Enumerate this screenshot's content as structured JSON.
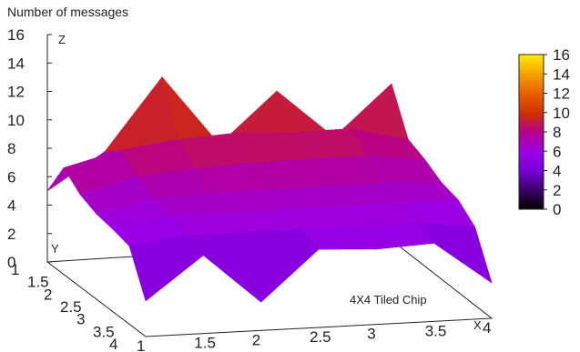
{
  "chart_data": {
    "type": "surface",
    "title": "Number of messages",
    "zlabel": "Z",
    "xlabel": "X",
    "ylabel": "Y",
    "annotation": "4X4 Tiled Chip",
    "zlim": [
      0,
      16
    ],
    "z_ticks": [
      "16",
      "14",
      "12",
      "10",
      "8",
      "6",
      "4",
      "2",
      "0"
    ],
    "x_ticks": [
      "1",
      "1.5",
      "2",
      "2.5",
      "3",
      "3.5",
      "4"
    ],
    "y_ticks": [
      "1",
      "1.5",
      "2",
      "2.5",
      "3",
      "3.5",
      "4"
    ],
    "colorbar": {
      "range": [
        0,
        16
      ],
      "ticks": [
        "16",
        "14",
        "12",
        "10",
        "8",
        "6",
        "4",
        "2",
        "0"
      ],
      "palette": [
        "#000000",
        "#3a0066",
        "#7a00d6",
        "#9a00e8",
        "#b8008c",
        "#d03000",
        "#e86000",
        "#f4a000",
        "#ffee00"
      ]
    },
    "grid": false,
    "x": [
      1,
      1.5,
      2,
      2.5,
      3,
      3.5,
      4
    ],
    "y": [
      1,
      1.5,
      2,
      2.5,
      3,
      3.5,
      4
    ],
    "z": [
      [
        2.5,
        5.5,
        2.0,
        5.5,
        5.3,
        5.5,
        2.5
      ],
      [
        5.5,
        6.0,
        6.0,
        6.0,
        6.0,
        6.0,
        5.5
      ],
      [
        5.8,
        6.5,
        6.5,
        6.5,
        6.5,
        6.5,
        6.5
      ],
      [
        6.0,
        6.8,
        7.0,
        7.0,
        7.0,
        7.0,
        6.8
      ],
      [
        6.5,
        7.5,
        7.8,
        8.0,
        8.0,
        8.0,
        7.5
      ],
      [
        7.5,
        8.5,
        9.0,
        9.2,
        9.0,
        9.0,
        8.0
      ],
      [
        5.0,
        7.5,
        12.5,
        7.5,
        11.0,
        7.5,
        11.0
      ]
    ]
  }
}
